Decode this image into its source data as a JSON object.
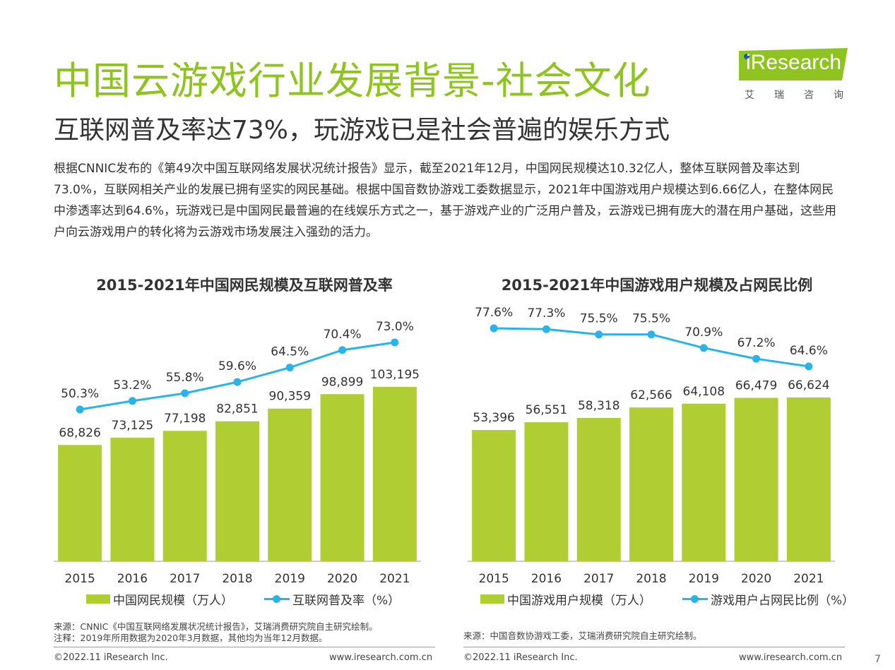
{
  "header": {
    "title": "中国云游戏行业发展背景-社会文化",
    "subtitle": "互联网普及率达73%，玩游戏已是社会普遍的娱乐方式"
  },
  "logo": {
    "text": "iResearch",
    "cn": "艾瑞咨询",
    "accent": "#8fc31f"
  },
  "intro": "根据CNNIC发布的《第49次中国互联网络发展状况统计报告》显示，截至2021年12月，中国网民规模达10.32亿人，整体互联网普及率达到73.0%，互联网相关产业的发展已拥有坚实的网民基础。根据中国音数协游戏工委数据显示，2021年中国游戏用户规模达到6.66亿人，在整体网民中渗透率达到64.6%，玩游戏已是中国网民最普遍的在线娱乐方式之一，基于游戏产业的广泛用户普及，云游戏已拥有庞大的潜在用户基础，这些用户向云游戏用户的转化将为云游戏市场发展注入强劲的活力。",
  "colors": {
    "bar": "#b0cd34",
    "line": "#29b3e8",
    "title": "#8fc31f"
  },
  "chart_data": [
    {
      "type": "bar",
      "title": "2015-2021年中国网民规模及互联网普及率",
      "categories": [
        "2015",
        "2016",
        "2017",
        "2018",
        "2019",
        "2020",
        "2021"
      ],
      "series": [
        {
          "name": "中国网民规模（万人）",
          "type": "bar",
          "values": [
            68826,
            73125,
            77198,
            82851,
            90359,
            98899,
            103195
          ],
          "labels": [
            "68,826",
            "73,125",
            "77,198",
            "82,851",
            "90,359",
            "98,899",
            "103,195"
          ]
        },
        {
          "name": "互联网普及率（%）",
          "type": "line",
          "values": [
            50.3,
            53.2,
            55.8,
            59.6,
            64.5,
            70.4,
            73.0
          ],
          "labels": [
            "50.3%",
            "53.2%",
            "55.8%",
            "59.6%",
            "64.5%",
            "70.4%",
            "73.0%"
          ]
        }
      ],
      "legend": [
        "中国网民规模（万人）",
        "互联网普及率（%）"
      ]
    },
    {
      "type": "bar",
      "title": "2015-2021年中国游戏用户规模及占网民比例",
      "categories": [
        "2015",
        "2016",
        "2017",
        "2018",
        "2019",
        "2020",
        "2021"
      ],
      "series": [
        {
          "name": "中国游戏用户规模（万人）",
          "type": "bar",
          "values": [
            53396,
            56551,
            58318,
            62566,
            64108,
            66479,
            66624
          ],
          "labels": [
            "53,396",
            "56,551",
            "58,318",
            "62,566",
            "64,108",
            "66,479",
            "66,624"
          ]
        },
        {
          "name": "游戏用户占网民比例（%）",
          "type": "line",
          "values": [
            77.6,
            77.3,
            75.5,
            75.5,
            70.9,
            67.2,
            64.6
          ],
          "labels": [
            "77.6%",
            "77.3%",
            "75.5%",
            "75.5%",
            "70.9%",
            "67.2%",
            "64.6%"
          ]
        }
      ],
      "legend": [
        "中国游戏用户规模（万人）",
        "游戏用户占网民比例（%）"
      ]
    }
  ],
  "notes": {
    "left_source": "来源：CNNIC《中国互联网络发展状况统计报告》，艾瑞消费研究院自主研究绘制。",
    "left_note": "注释：2019年所用数据为2020年3月数据，其他均为当年12月数据。",
    "right_source": "来源：中国音数协游戏工委，艾瑞消费研究院自主研究绘制。"
  },
  "footer": {
    "copyright": "©2022.11 iResearch Inc.",
    "url": "www.iresearch.com.cn",
    "page": "7"
  }
}
